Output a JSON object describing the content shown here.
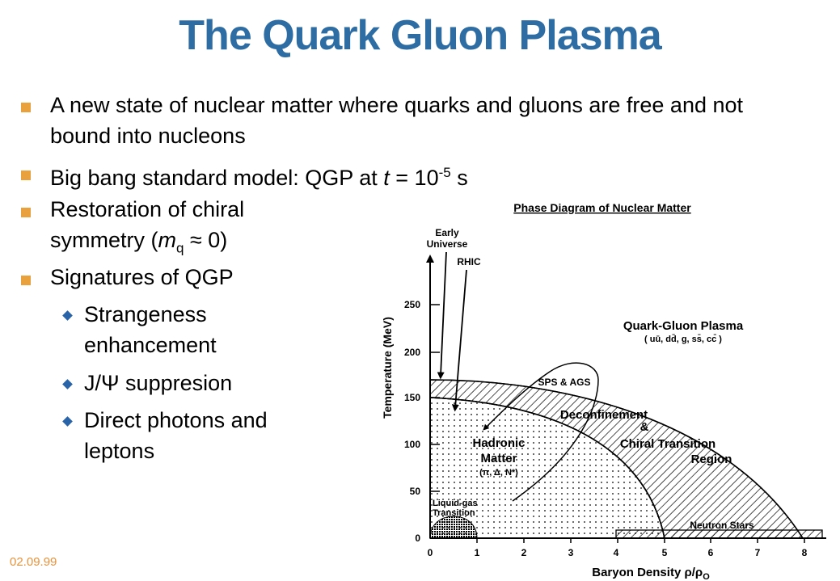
{
  "title": "The Quark Gluon Plasma",
  "bullets": {
    "b1": "A new state of nuclear matter where quarks and gluons are free and not bound into nucleons",
    "b2_prefix": "Big bang standard model: QGP at ",
    "b2_t": "t",
    "b2_eq": " = 10",
    "b2_exp": "-5",
    "b2_unit": " s",
    "b3_line1": "Restoration of chiral",
    "b3_line2_prefix": "symmetry (",
    "b3_m": "m",
    "b3_sub": "q",
    "b3_suffix": " ≈ 0)",
    "b4": "Signatures of QGP",
    "sub1": "Strangeness enhancement",
    "sub2": "J/Ψ suppresion",
    "sub3": "Direct photons and leptons"
  },
  "footer_date": "02.09.99",
  "diagram": {
    "title": "Phase Diagram of Nuclear Matter",
    "ylabel": "Temperature (MeV)",
    "xlabel": "Baryon Density ρ/ρ",
    "xlabel_sub": "O",
    "x_ticks": [
      "0",
      "1",
      "2",
      "3",
      "4",
      "5",
      "6",
      "7",
      "8"
    ],
    "y_ticks": [
      "0",
      "50",
      "100",
      "150",
      "200",
      "250"
    ],
    "labels": {
      "early1": "Early",
      "early2": "Universe",
      "rhic": "RHIC",
      "qgp": "Quark-Gluon Plasma",
      "qgp_sub": "( uū, dd̄, g, ss̄, cc̄ )",
      "sps": "SPS & AGS",
      "deconf": "Deconfinement",
      "amp": "&",
      "chiral": "Chiral Transition",
      "region": "Region",
      "hadronic": "Hadronic",
      "matter": "Matter",
      "hadronic_sub": "(π, Δ, N*)",
      "lg1": "Liquid-gas",
      "lg2": "Transition",
      "neutron": "Neutron Stars"
    }
  }
}
